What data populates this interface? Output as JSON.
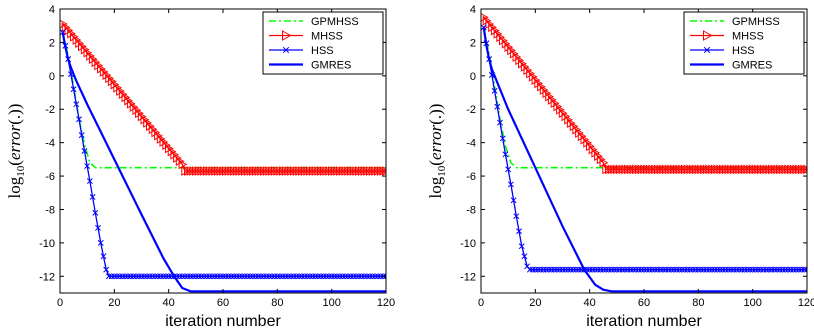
{
  "chart_data": [
    {
      "type": "line",
      "xlabel": "iteration number",
      "ylabel": {
        "log": "log",
        "sub": "10",
        "open": "(",
        "var": "error",
        "close": "(.))"
      },
      "xlim": [
        0,
        120
      ],
      "ylim": [
        -13,
        4
      ],
      "xticks": [
        0,
        20,
        40,
        60,
        80,
        100,
        120
      ],
      "yticks": [
        4,
        2,
        0,
        -2,
        -4,
        -6,
        -8,
        -10,
        -12
      ],
      "legend_position": "top-right",
      "grid": false,
      "series": [
        {
          "name": "GPMHSS",
          "color": "#00ff00",
          "style": "dash-dot",
          "marker": "none",
          "x": [
            1,
            3,
            5,
            7,
            9,
            11,
            13,
            120
          ],
          "y": [
            2.6,
            1.2,
            -0.6,
            -2.6,
            -4.1,
            -5.2,
            -5.5,
            -5.5
          ]
        },
        {
          "name": "MHSS",
          "color": "#ff0000",
          "style": "solid",
          "marker": "triangle-right",
          "x": [
            1,
            45,
            46,
            120
          ],
          "y": [
            3.1,
            -5.3,
            -5.7,
            -5.7
          ]
        },
        {
          "name": "HSS",
          "color": "#0000ff",
          "style": "solid",
          "marker": "x",
          "x": [
            1,
            3,
            5,
            7,
            9,
            11,
            13,
            15,
            17,
            18,
            120
          ],
          "y": [
            2.6,
            1.0,
            -0.8,
            -2.6,
            -4.5,
            -6.3,
            -8.2,
            -10.0,
            -11.6,
            -12.0,
            -12.0
          ]
        },
        {
          "name": "GMRES",
          "color": "#0000ff",
          "style": "solid",
          "marker": "none",
          "x": [
            1,
            2,
            3,
            4,
            6,
            10,
            20,
            30,
            38,
            42,
            45,
            48,
            120
          ],
          "y": [
            2.6,
            1.7,
            1.0,
            0.5,
            -0.3,
            -1.7,
            -5.0,
            -8.3,
            -10.9,
            -12.0,
            -12.7,
            -12.9,
            -12.9
          ]
        }
      ]
    },
    {
      "type": "line",
      "xlabel": "iteration number",
      "ylabel": {
        "log": "log",
        "sub": "10",
        "open": "(",
        "var": "error",
        "close": "(.))"
      },
      "xlim": [
        0,
        120
      ],
      "ylim": [
        -13,
        4
      ],
      "xticks": [
        0,
        20,
        40,
        60,
        80,
        100,
        120
      ],
      "yticks": [
        4,
        2,
        0,
        -2,
        -4,
        -6,
        -8,
        -10,
        -12
      ],
      "legend_position": "top-right",
      "grid": false,
      "series": [
        {
          "name": "GPMHSS",
          "color": "#00ff00",
          "style": "dash-dot",
          "marker": "none",
          "x": [
            1,
            3,
            5,
            7,
            9,
            11,
            13,
            120
          ],
          "y": [
            2.9,
            1.3,
            -0.6,
            -2.6,
            -4.2,
            -5.2,
            -5.5,
            -5.5
          ]
        },
        {
          "name": "MHSS",
          "color": "#ff0000",
          "style": "solid",
          "marker": "triangle-right",
          "x": [
            1,
            45,
            46,
            120
          ],
          "y": [
            3.5,
            -5.2,
            -5.6,
            -5.6
          ]
        },
        {
          "name": "HSS",
          "color": "#0000ff",
          "style": "solid",
          "marker": "x",
          "x": [
            1,
            3,
            5,
            7,
            9,
            11,
            13,
            15,
            17,
            18,
            120
          ],
          "y": [
            2.9,
            1.0,
            -0.9,
            -2.8,
            -4.7,
            -6.5,
            -8.4,
            -10.2,
            -11.4,
            -11.6,
            -11.6
          ]
        },
        {
          "name": "GMRES",
          "color": "#0000ff",
          "style": "solid",
          "marker": "none",
          "x": [
            1,
            2,
            3,
            4,
            6,
            10,
            20,
            30,
            38,
            42,
            45,
            48,
            120
          ],
          "y": [
            2.9,
            1.8,
            1.0,
            0.4,
            -0.4,
            -2.0,
            -5.5,
            -9.0,
            -11.6,
            -12.5,
            -12.8,
            -12.9,
            -12.9
          ]
        }
      ]
    }
  ]
}
